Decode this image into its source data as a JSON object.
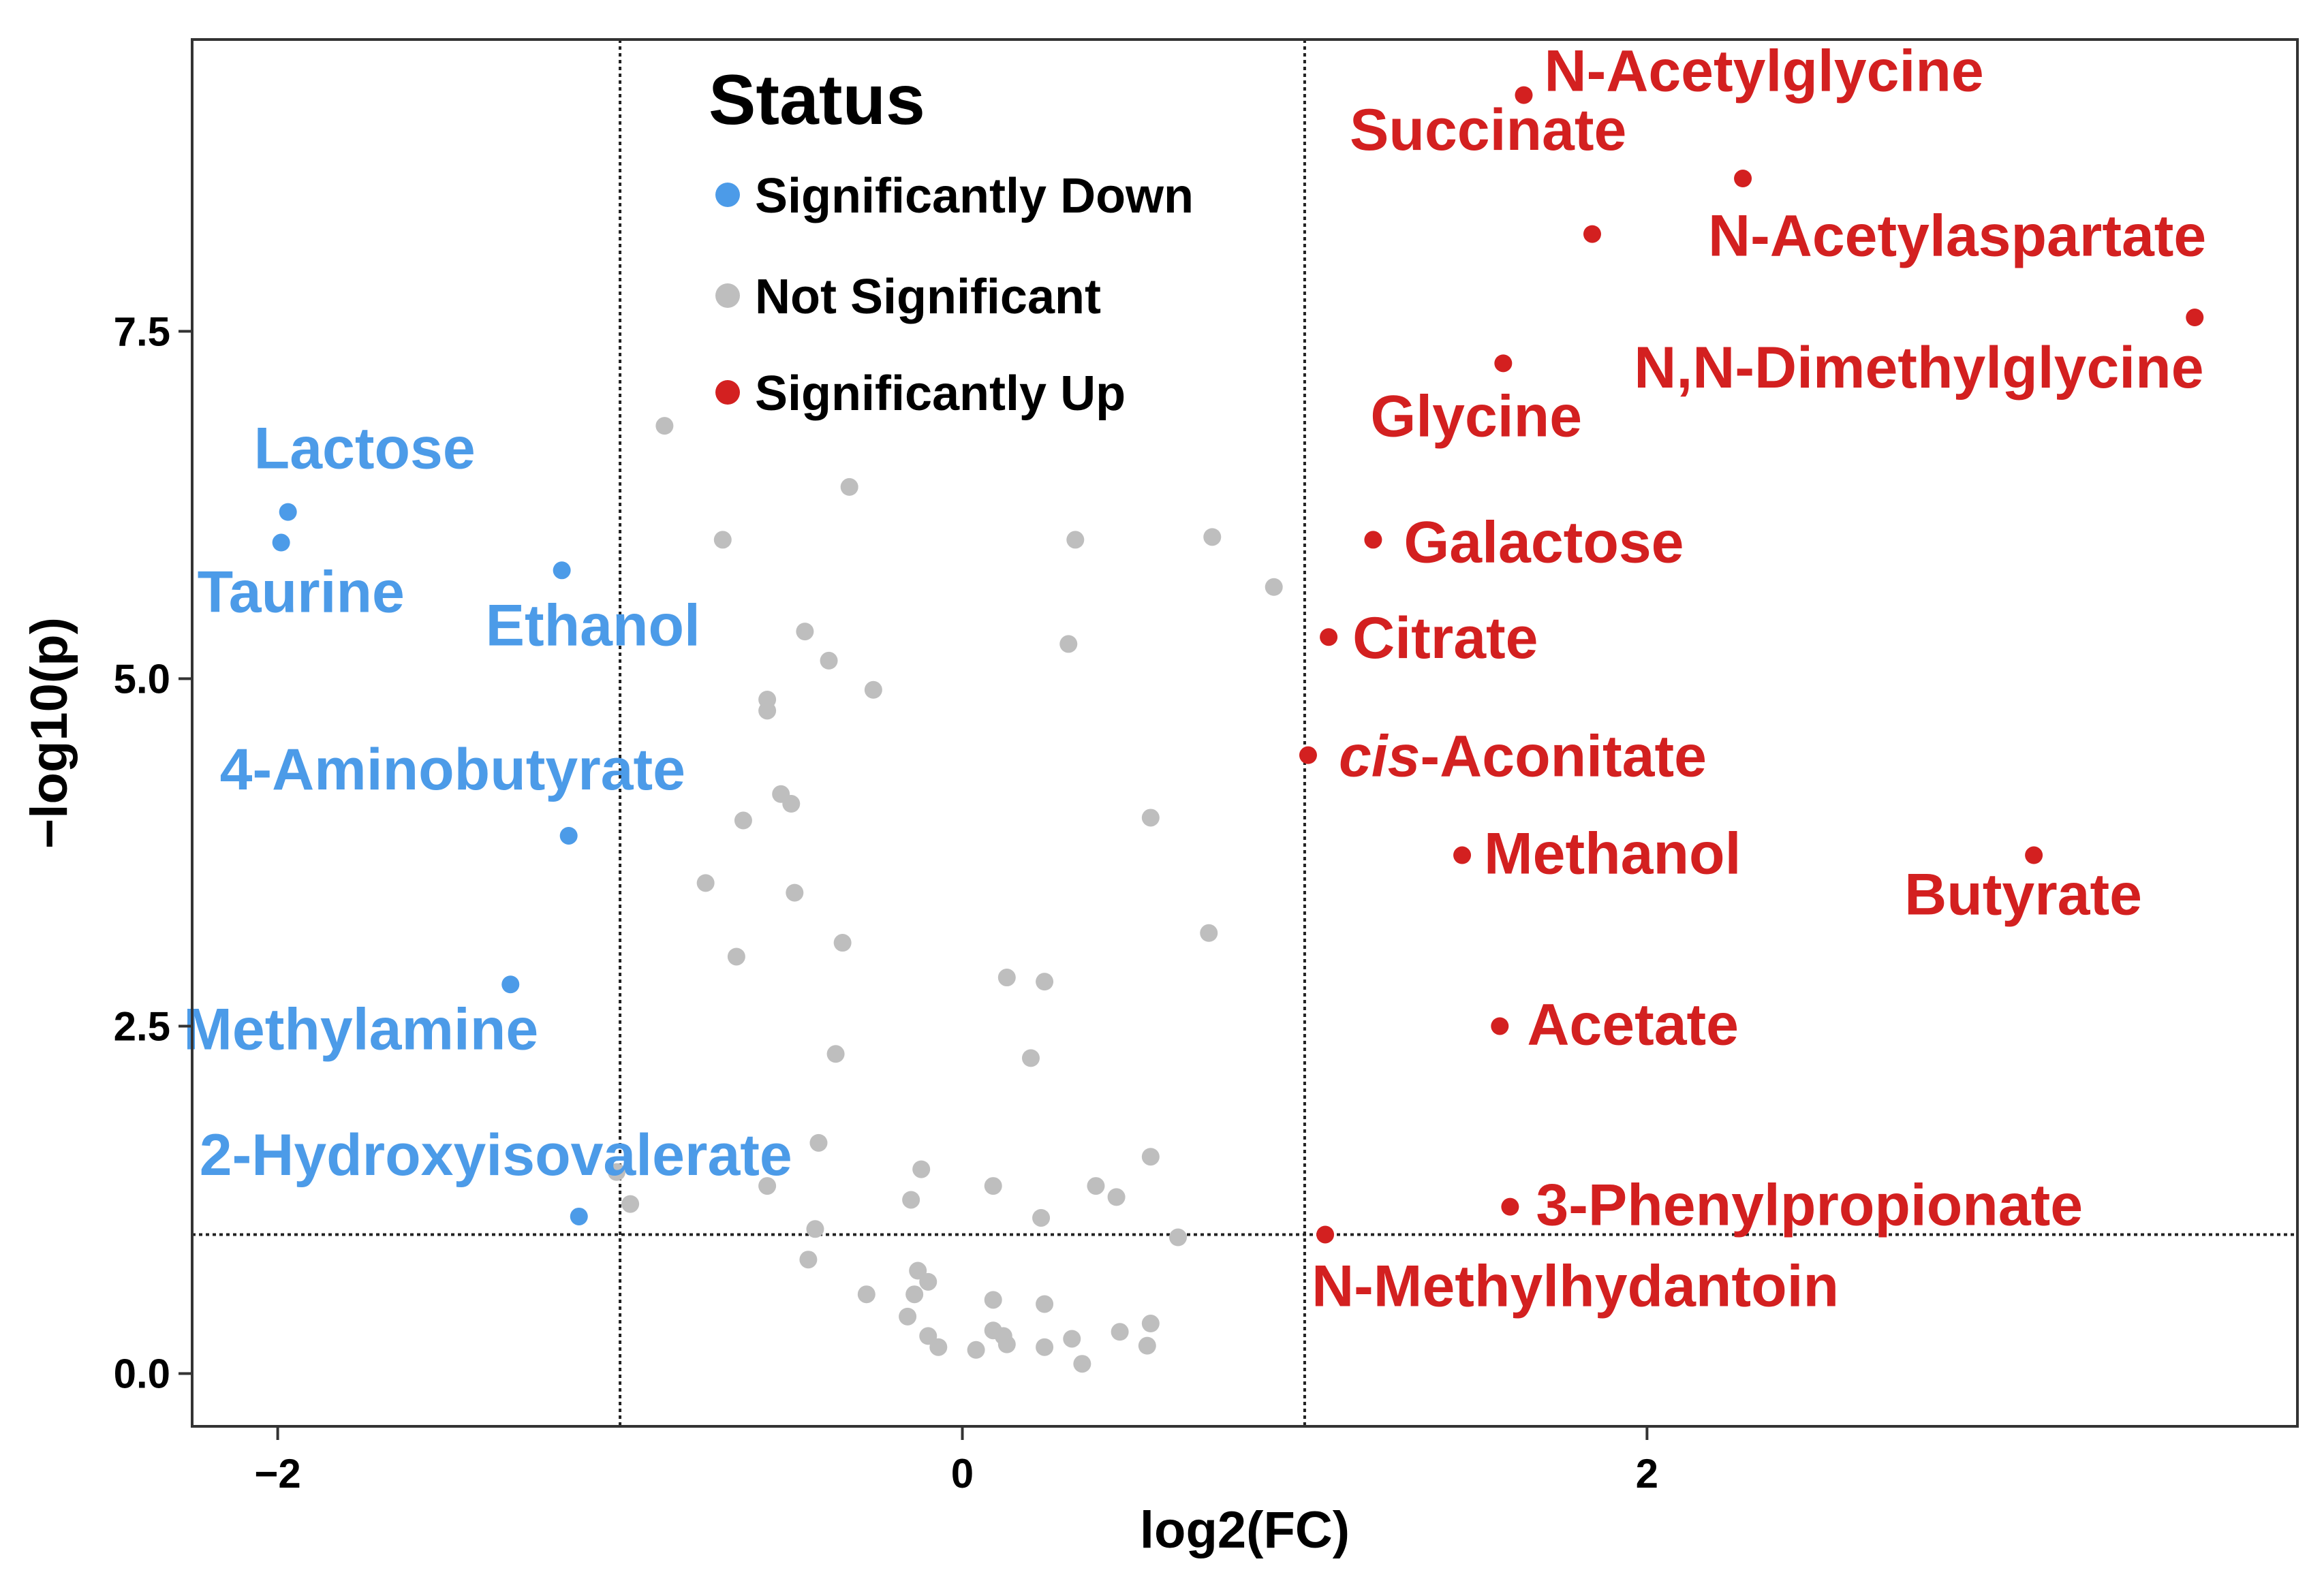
{
  "chart_data": {
    "type": "scatter",
    "title": "",
    "xlabel": "log2(FC)",
    "ylabel": "−log10(p)",
    "xlim": [
      -2.25,
      3.9
    ],
    "ylim": [
      -0.38,
      9.6
    ],
    "x_ticks": [
      {
        "value": -2,
        "label": "−2"
      },
      {
        "value": 0,
        "label": "0"
      },
      {
        "value": 2,
        "label": "2"
      }
    ],
    "y_ticks": [
      {
        "value": 0,
        "label": "0.0"
      },
      {
        "value": 2.5,
        "label": "2.5"
      },
      {
        "value": 5,
        "label": "5.0"
      },
      {
        "value": 7.5,
        "label": "7.5"
      }
    ],
    "grid": false,
    "thresholds": {
      "x": [
        -1,
        1
      ],
      "y": 1
    },
    "colors": {
      "Significantly Down": "#4C9BE8",
      "Not Significant": "#BEBEBE",
      "Significantly Up": "#D32020"
    },
    "legend": {
      "position": "top-center",
      "title": "Status",
      "entries": [
        "Significantly Down",
        "Not Significant",
        "Significantly Up"
      ]
    },
    "series": [
      {
        "name": "Significantly Down",
        "points": [
          {
            "x": -1.97,
            "y": 6.2,
            "label": "Lactose"
          },
          {
            "x": -1.99,
            "y": 5.98,
            "label": "Taurine"
          },
          {
            "x": -1.17,
            "y": 5.78,
            "label": "Ethanol"
          },
          {
            "x": -1.15,
            "y": 3.87,
            "label": "4-Aminobutyrate"
          },
          {
            "x": -1.32,
            "y": 2.8,
            "label": "Methylamine"
          },
          {
            "x": -1.12,
            "y": 1.13,
            "label": "2-Hydroxyisovalerate"
          }
        ]
      },
      {
        "name": "Not Significant",
        "points": [
          {
            "x": -0.87,
            "y": 6.82
          },
          {
            "x": -0.33,
            "y": 6.38
          },
          {
            "x": -0.7,
            "y": 6.0
          },
          {
            "x": 0.33,
            "y": 6.0
          },
          {
            "x": 0.73,
            "y": 6.02
          },
          {
            "x": 0.91,
            "y": 5.66
          },
          {
            "x": -0.46,
            "y": 5.34
          },
          {
            "x": 0.31,
            "y": 5.25
          },
          {
            "x": -0.39,
            "y": 5.13
          },
          {
            "x": -0.26,
            "y": 4.92
          },
          {
            "x": -0.57,
            "y": 4.85
          },
          {
            "x": -0.57,
            "y": 4.77
          },
          {
            "x": -0.53,
            "y": 4.17
          },
          {
            "x": -0.5,
            "y": 4.1
          },
          {
            "x": -0.64,
            "y": 3.98
          },
          {
            "x": 0.55,
            "y": 4.0
          },
          {
            "x": -0.75,
            "y": 3.53
          },
          {
            "x": -0.49,
            "y": 3.46
          },
          {
            "x": 0.72,
            "y": 3.17
          },
          {
            "x": -0.35,
            "y": 3.1
          },
          {
            "x": -0.66,
            "y": 3.0
          },
          {
            "x": 0.13,
            "y": 2.85
          },
          {
            "x": 0.24,
            "y": 2.82
          },
          {
            "x": -0.37,
            "y": 2.3
          },
          {
            "x": 0.2,
            "y": 2.27
          },
          {
            "x": -0.42,
            "y": 1.66
          },
          {
            "x": 0.55,
            "y": 1.56
          },
          {
            "x": -1.01,
            "y": 1.45
          },
          {
            "x": -0.12,
            "y": 1.47
          },
          {
            "x": -0.57,
            "y": 1.35
          },
          {
            "x": 0.09,
            "y": 1.35
          },
          {
            "x": 0.39,
            "y": 1.35
          },
          {
            "x": 0.45,
            "y": 1.27
          },
          {
            "x": -0.15,
            "y": 1.25
          },
          {
            "x": -0.97,
            "y": 1.22
          },
          {
            "x": -0.43,
            "y": 1.04
          },
          {
            "x": 0.23,
            "y": 1.12
          },
          {
            "x": 0.63,
            "y": 0.98
          },
          {
            "x": -0.45,
            "y": 0.82
          },
          {
            "x": -0.13,
            "y": 0.74
          },
          {
            "x": -0.1,
            "y": 0.66
          },
          {
            "x": -0.28,
            "y": 0.57
          },
          {
            "x": -0.14,
            "y": 0.57
          },
          {
            "x": 0.09,
            "y": 0.53
          },
          {
            "x": 0.24,
            "y": 0.5
          },
          {
            "x": -0.16,
            "y": 0.41
          },
          {
            "x": 0.55,
            "y": 0.36
          },
          {
            "x": 0.09,
            "y": 0.31
          },
          {
            "x": 0.46,
            "y": 0.3
          },
          {
            "x": -0.1,
            "y": 0.27
          },
          {
            "x": 0.12,
            "y": 0.27
          },
          {
            "x": 0.32,
            "y": 0.25
          },
          {
            "x": -0.07,
            "y": 0.19
          },
          {
            "x": 0.04,
            "y": 0.17
          },
          {
            "x": 0.13,
            "y": 0.21
          },
          {
            "x": 0.24,
            "y": 0.19
          },
          {
            "x": 0.54,
            "y": 0.2
          },
          {
            "x": 0.35,
            "y": 0.07
          }
        ]
      },
      {
        "name": "Significantly Up",
        "points": [
          {
            "x": 1.64,
            "y": 9.2,
            "label": "N-Acetylglycine"
          },
          {
            "x": 2.28,
            "y": 8.6,
            "label": "Succinate"
          },
          {
            "x": 1.84,
            "y": 8.2,
            "label": "N-Acetylaspartate"
          },
          {
            "x": 3.6,
            "y": 7.6,
            "label": "N,N-Dimethylglycine"
          },
          {
            "x": 1.58,
            "y": 7.27,
            "label": "Glycine"
          },
          {
            "x": 1.2,
            "y": 6.0,
            "label": "Galactose"
          },
          {
            "x": 1.07,
            "y": 5.3,
            "label": "Citrate"
          },
          {
            "x": 1.01,
            "y": 4.45,
            "label": "cis-Aconitate"
          },
          {
            "x": 1.46,
            "y": 3.73,
            "label": "Methanol"
          },
          {
            "x": 3.13,
            "y": 3.73,
            "label": "Butyrate"
          },
          {
            "x": 1.57,
            "y": 2.5,
            "label": "Acetate"
          },
          {
            "x": 1.6,
            "y": 1.2,
            "label": "3-Phenylpropionate"
          },
          {
            "x": 1.06,
            "y": 1.0,
            "label": "N-Methylhydantoin"
          }
        ]
      }
    ]
  }
}
